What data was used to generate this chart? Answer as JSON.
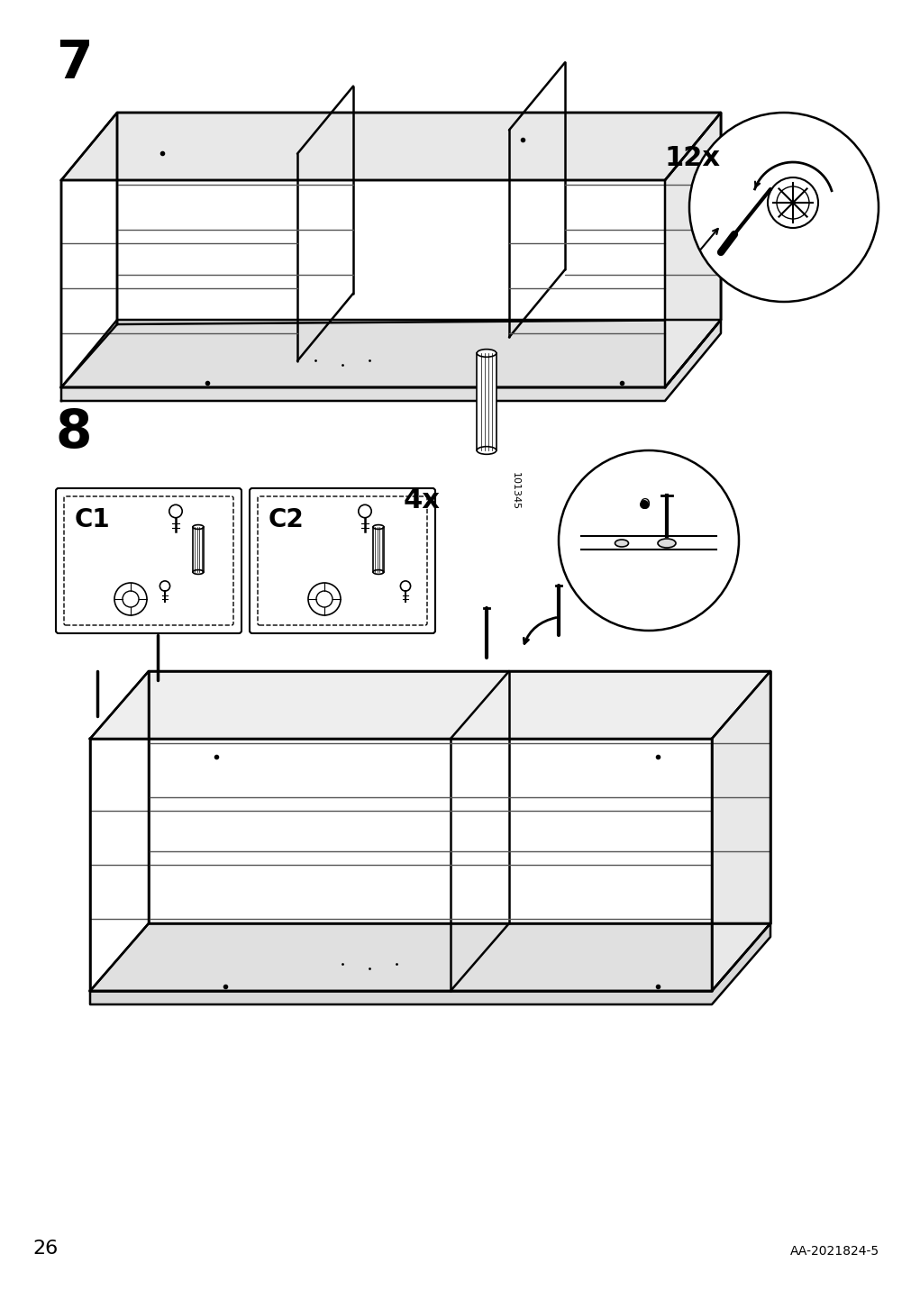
{
  "page_number": "26",
  "doc_number": "AA-2021824-5",
  "step7_label": "7",
  "step8_label": "8",
  "count_12x": "12x",
  "count_4x": "4x",
  "part_c1": "C1",
  "part_c2": "C2",
  "part_number": "101345",
  "bg_color": "#ffffff",
  "line_color": "#000000",
  "gray_color": "#888888",
  "light_gray": "#cccccc"
}
